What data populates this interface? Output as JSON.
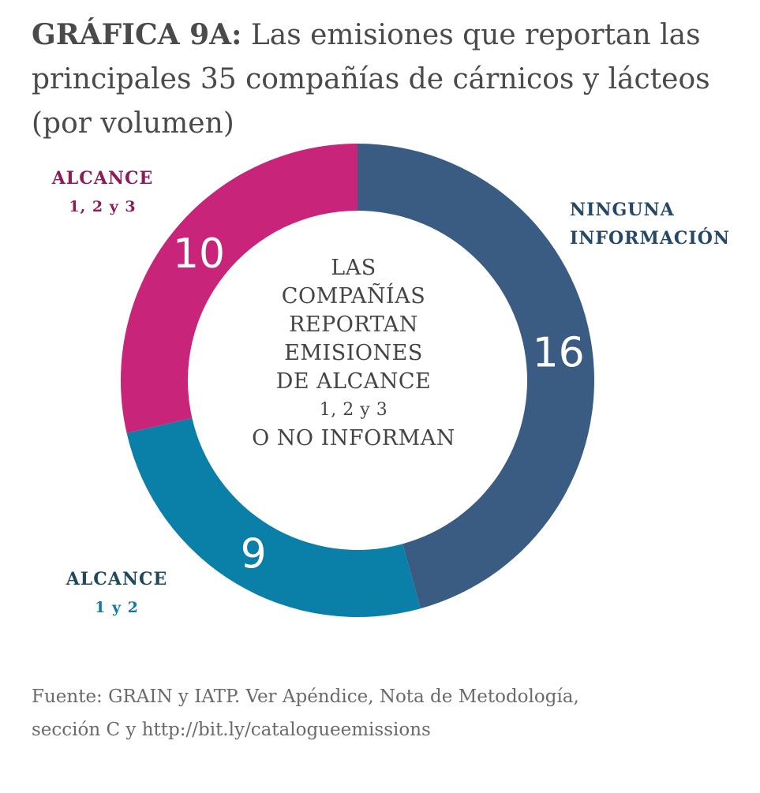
{
  "title": {
    "lead": "GRÁFICA 9A:",
    "rest": "Las emisiones que reportan las principales 35 compañías de cárnicos y lácteos (por volumen)"
  },
  "center_text": {
    "line1": "LAS",
    "line2": "COMPAÑÍAS",
    "line3": "REPORTAN",
    "line4": "EMISIONES",
    "line5": "DE ALCANCE",
    "line6": "1, 2 y 3",
    "line7": "O NO INFORMAN"
  },
  "labels": {
    "scope123": {
      "line1": "ALCANCE",
      "line2": "1, 2 y 3"
    },
    "none": {
      "line1": "NINGUNA",
      "line2": "INFORMACIÓN"
    },
    "scope12": {
      "line1": "ALCANCE",
      "line2": "1 y 2"
    }
  },
  "source": {
    "line1": "Fuente: GRAIN y IATP. Ver Apéndice, Nota de Metodología,",
    "line2": "sección C y http://bit.ly/catalogueemissions"
  },
  "chart_data": {
    "type": "pie",
    "donut": true,
    "start": "top",
    "direction": "clockwise",
    "slices": [
      {
        "label": "NINGUNA INFORMACIÓN",
        "value": 16,
        "color": "#3a5c82"
      },
      {
        "label": "ALCANCE 1 y 2",
        "value": 9,
        "color": "#0a7fa8"
      },
      {
        "label": "ALCANCE 1, 2 y 3",
        "value": 10,
        "color": "#c8247a"
      }
    ],
    "value_label_color": "#ffffff"
  }
}
